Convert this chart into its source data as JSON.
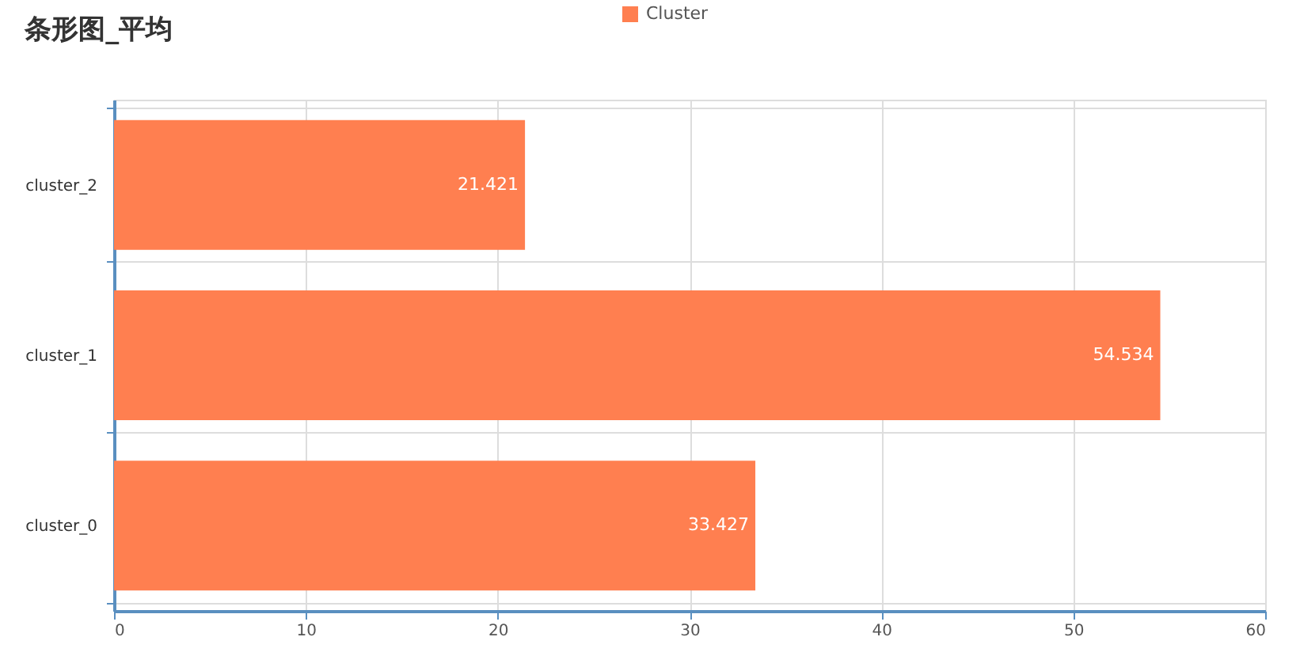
{
  "chart_data": {
    "type": "bar",
    "orientation": "horizontal",
    "title": "条形图_平均",
    "categories": [
      "cluster_2",
      "cluster_1",
      "cluster_0"
    ],
    "series": [
      {
        "name": "Cluster",
        "color": "#ff7f50",
        "values": [
          21.421,
          54.534,
          33.427
        ]
      }
    ],
    "xlim": [
      0,
      60
    ],
    "xticks": [
      0,
      10,
      20,
      30,
      40,
      50,
      60
    ],
    "grid": true,
    "legend": "top",
    "data_labels": true
  }
}
